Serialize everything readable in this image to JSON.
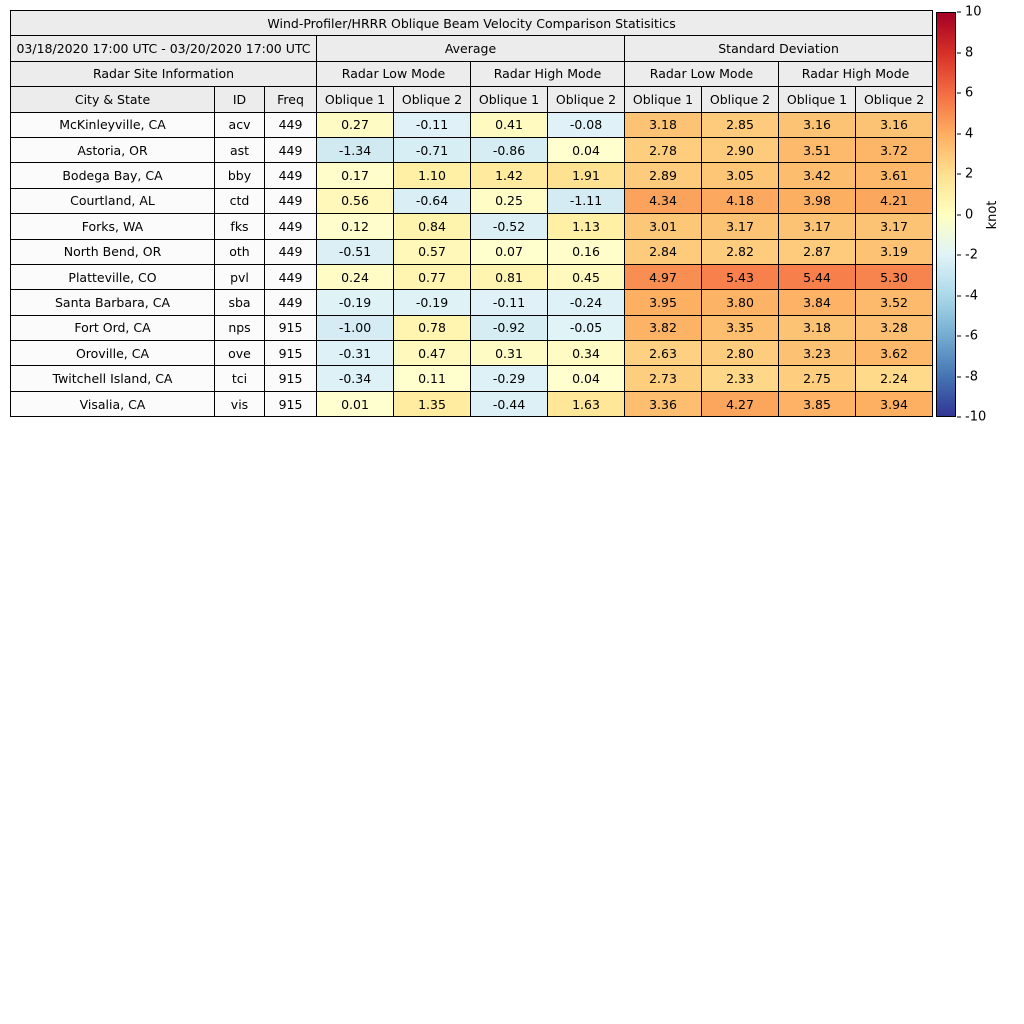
{
  "chart_data": {
    "type": "heatmap",
    "title": "Wind-Profiler/HRRR Oblique Beam Velocity Comparison Statisitics",
    "period": "03/18/2020 17:00 UTC - 03/20/2020 17:00 UTC",
    "section_headers": {
      "site_info": "Radar Site Information",
      "average": "Average",
      "std_dev": "Standard Deviation"
    },
    "mode_headers": [
      "Radar Low Mode",
      "Radar High Mode",
      "Radar Low Mode",
      "Radar High Mode"
    ],
    "sub_headers": [
      "City & State",
      "ID",
      "Freq",
      "Oblique 1",
      "Oblique 2",
      "Oblique 1",
      "Oblique 2",
      "Oblique 1",
      "Oblique 2",
      "Oblique 1",
      "Oblique 2"
    ],
    "rows": [
      {
        "city": "McKinleyville, CA",
        "id": "acv",
        "freq": "449",
        "values": [
          0.27,
          -0.11,
          0.41,
          -0.08,
          3.18,
          2.85,
          3.16,
          3.16
        ]
      },
      {
        "city": "Astoria, OR",
        "id": "ast",
        "freq": "449",
        "values": [
          -1.34,
          -0.71,
          -0.86,
          0.04,
          2.78,
          2.9,
          3.51,
          3.72
        ]
      },
      {
        "city": "Bodega Bay, CA",
        "id": "bby",
        "freq": "449",
        "values": [
          0.17,
          1.1,
          1.42,
          1.91,
          2.89,
          3.05,
          3.42,
          3.61
        ]
      },
      {
        "city": "Courtland, AL",
        "id": "ctd",
        "freq": "449",
        "values": [
          0.56,
          -0.64,
          0.25,
          -1.11,
          4.34,
          4.18,
          3.98,
          4.21
        ]
      },
      {
        "city": "Forks, WA",
        "id": "fks",
        "freq": "449",
        "values": [
          0.12,
          0.84,
          -0.52,
          1.13,
          3.01,
          3.17,
          3.17,
          3.17
        ]
      },
      {
        "city": "North Bend, OR",
        "id": "oth",
        "freq": "449",
        "values": [
          -0.51,
          0.57,
          0.07,
          0.16,
          2.84,
          2.82,
          2.87,
          3.19
        ]
      },
      {
        "city": "Platteville, CO",
        "id": "pvl",
        "freq": "449",
        "values": [
          0.24,
          0.77,
          0.81,
          0.45,
          4.97,
          5.43,
          5.44,
          5.3
        ]
      },
      {
        "city": "Santa Barbara, CA",
        "id": "sba",
        "freq": "449",
        "values": [
          -0.19,
          -0.19,
          -0.11,
          -0.24,
          3.95,
          3.8,
          3.84,
          3.52
        ]
      },
      {
        "city": "Fort Ord, CA",
        "id": "nps",
        "freq": "915",
        "values": [
          -1.0,
          0.78,
          -0.92,
          -0.05,
          3.82,
          3.35,
          3.18,
          3.28
        ]
      },
      {
        "city": "Oroville, CA",
        "id": "ove",
        "freq": "915",
        "values": [
          -0.31,
          0.47,
          0.31,
          0.34,
          2.63,
          2.8,
          3.23,
          3.62
        ]
      },
      {
        "city": "Twitchell Island, CA",
        "id": "tci",
        "freq": "915",
        "values": [
          -0.34,
          0.11,
          -0.29,
          0.04,
          2.73,
          2.33,
          2.75,
          2.24
        ]
      },
      {
        "city": "Visalia, CA",
        "id": "vis",
        "freq": "915",
        "values": [
          0.01,
          1.35,
          -0.44,
          1.63,
          3.36,
          4.27,
          3.85,
          3.94
        ]
      }
    ],
    "colorbar": {
      "label": "knot",
      "min": -10,
      "max": 10,
      "ticks": [
        10,
        8,
        6,
        4,
        2,
        0,
        -2,
        -4,
        -6,
        -8,
        -10
      ],
      "gradient_colors": [
        "#a50026",
        "#d73027",
        "#f46d43",
        "#fdae61",
        "#fee090",
        "#ffffbf",
        "#e0f3f8",
        "#abd9e9",
        "#74add1",
        "#4575b4",
        "#313695"
      ],
      "value_color_stops": [
        [
          -10,
          "#313695"
        ],
        [
          -8,
          "#4575b4"
        ],
        [
          -6,
          "#74add1"
        ],
        [
          -4,
          "#abd9e9"
        ],
        [
          -2,
          "#c9e5f0"
        ],
        [
          -0.001,
          "#e1f3f7"
        ],
        [
          0.001,
          "#ffffd0"
        ],
        [
          1,
          "#fff2a8"
        ],
        [
          2,
          "#fee090"
        ],
        [
          4,
          "#fdae61"
        ],
        [
          6,
          "#f46d43"
        ],
        [
          8,
          "#d73027"
        ],
        [
          10,
          "#a50026"
        ]
      ]
    }
  }
}
